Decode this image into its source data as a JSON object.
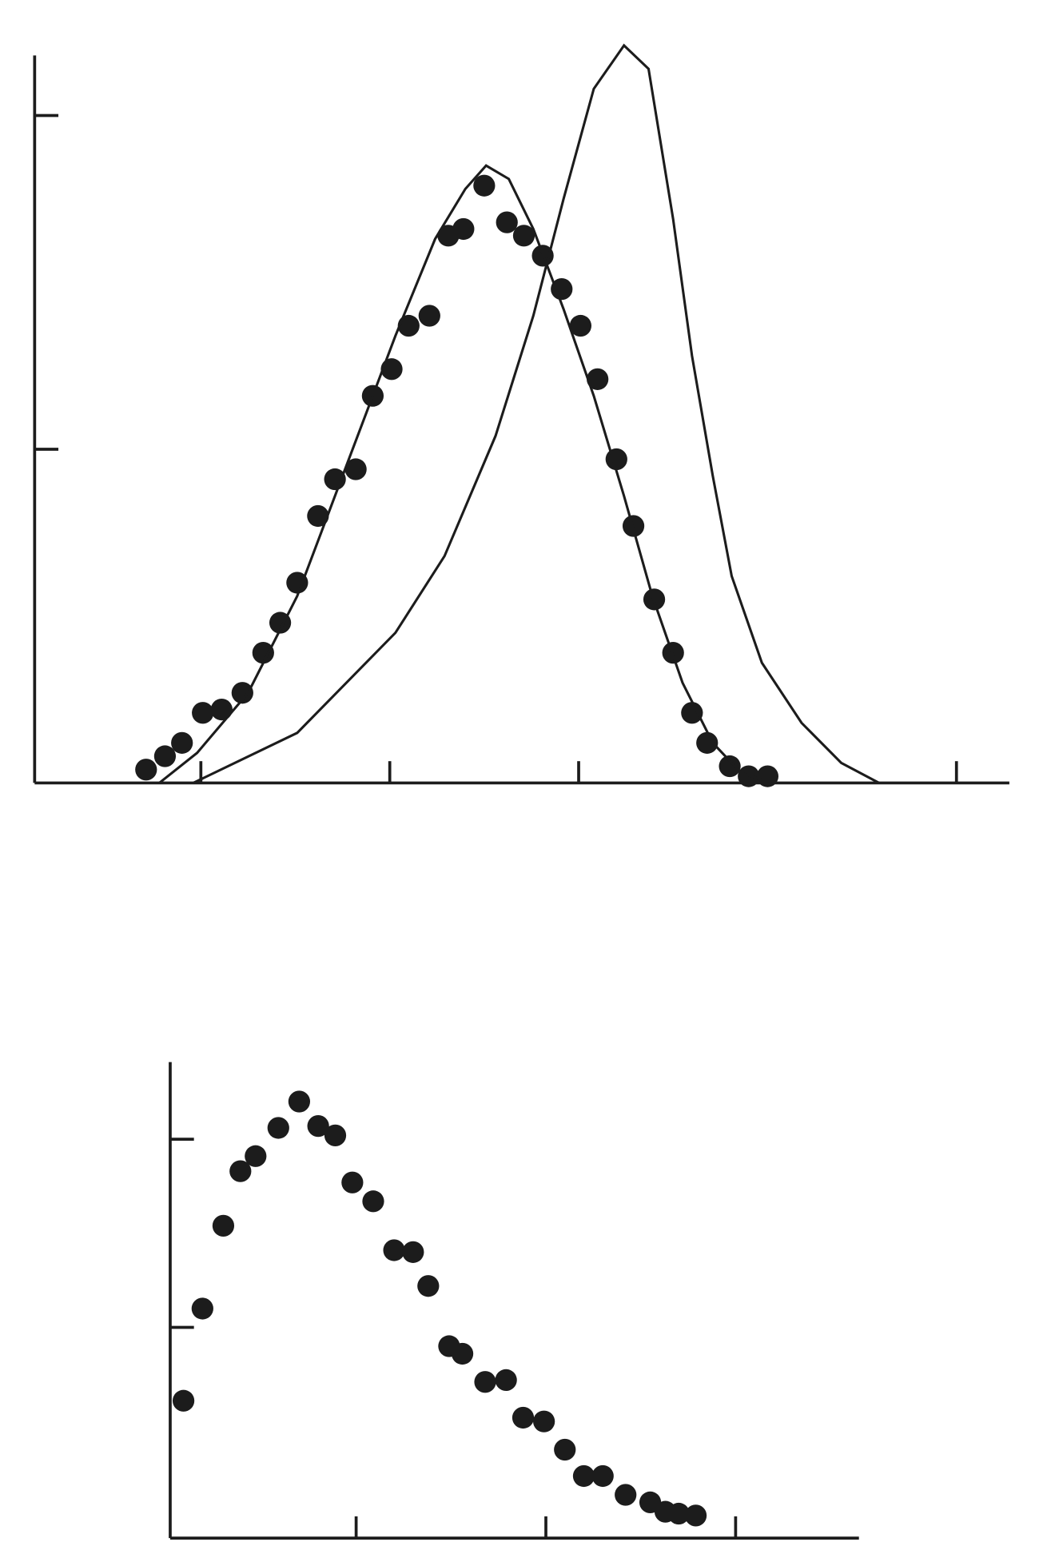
{
  "chart_data": [
    {
      "type": "scatter",
      "xlim": [
        0.12,
        5.28
      ],
      "ylim": [
        0,
        2.18
      ],
      "xticks": [
        1,
        2,
        3,
        5
      ],
      "yticks": [
        1,
        2
      ],
      "color": "#1c1c1c",
      "series": [
        {
          "type": "scatter",
          "color": "#1c1c1c",
          "x": [
            0.71,
            0.81,
            0.9,
            1.01,
            1.11,
            1.22,
            1.33,
            1.42,
            1.51,
            1.62,
            1.71,
            1.82,
            1.91,
            2.01,
            2.1,
            2.21,
            2.31,
            2.39,
            2.5,
            2.62,
            2.71,
            2.81,
            2.91,
            3.01,
            3.1,
            3.2,
            3.29,
            3.4,
            3.5,
            3.6,
            3.68,
            3.8,
            3.9,
            4.0
          ],
          "values": [
            0.04,
            0.08,
            0.12,
            0.21,
            0.22,
            0.27,
            0.39,
            0.48,
            0.6,
            0.8,
            0.91,
            0.94,
            1.16,
            1.24,
            1.37,
            1.4,
            1.64,
            1.66,
            1.79,
            1.68,
            1.64,
            1.58,
            1.48,
            1.37,
            1.21,
            0.97,
            0.77,
            0.55,
            0.39,
            0.21,
            0.12,
            0.05,
            0.02,
            0.02
          ]
        },
        {
          "type": "line",
          "color": "#1c1c1c",
          "x": [
            0.78,
            0.98,
            1.25,
            1.51,
            1.77,
            2.03,
            2.24,
            2.4,
            2.51,
            2.63,
            2.76,
            2.92,
            3.08,
            3.24,
            3.39,
            3.55,
            3.71,
            3.86,
            4.02
          ],
          "values": [
            0,
            0.09,
            0.27,
            0.56,
            0.95,
            1.34,
            1.63,
            1.78,
            1.85,
            1.81,
            1.66,
            1.42,
            1.16,
            0.86,
            0.56,
            0.3,
            0.12,
            0.03,
            0
          ]
        },
        {
          "type": "line",
          "color": "#1c1c1c",
          "x": [
            0.96,
            1.51,
            2.03,
            2.29,
            2.56,
            2.76,
            2.92,
            3.08,
            3.24,
            3.37,
            3.5,
            3.6,
            3.71,
            3.81,
            3.97,
            4.18,
            4.39,
            4.59
          ],
          "values": [
            0,
            0.15,
            0.45,
            0.68,
            1.04,
            1.4,
            1.75,
            2.08,
            2.21,
            2.14,
            1.69,
            1.28,
            0.92,
            0.62,
            0.36,
            0.18,
            0.06,
            0
          ]
        }
      ]
    },
    {
      "type": "scatter",
      "xlim": [
        0.02,
        3.65
      ],
      "ylim": [
        -0.12,
        2.41
      ],
      "xticks": [
        1,
        2,
        3
      ],
      "yticks": [
        1,
        2
      ],
      "color": "#1c1c1c",
      "series": [
        {
          "type": "scatter",
          "color": "#1c1c1c",
          "x": [
            0.09,
            0.19,
            0.3,
            0.39,
            0.47,
            0.59,
            0.7,
            0.8,
            0.89,
            0.98,
            1.09,
            1.2,
            1.3,
            1.38,
            1.49,
            1.56,
            1.68,
            1.79,
            1.88,
            1.99,
            2.1,
            2.2,
            2.3,
            2.42,
            2.55,
            2.63,
            2.7,
            2.79
          ],
          "values": [
            0.61,
            1.1,
            1.54,
            1.83,
            1.91,
            2.06,
            2.2,
            2.07,
            2.02,
            1.77,
            1.67,
            1.41,
            1.4,
            1.22,
            0.9,
            0.86,
            0.71,
            0.72,
            0.52,
            0.5,
            0.35,
            0.21,
            0.21,
            0.11,
            0.07,
            0.02,
            0.01,
            0
          ]
        }
      ]
    }
  ]
}
